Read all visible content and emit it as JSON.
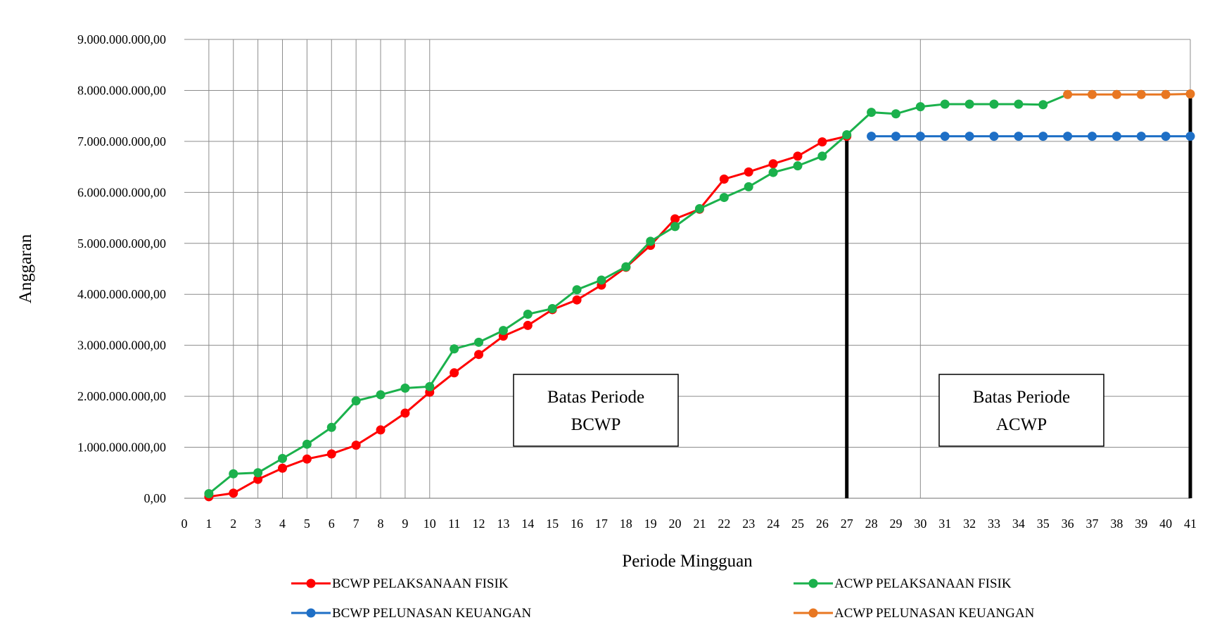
{
  "chart_data": {
    "type": "line",
    "ylabel": "Anggaran",
    "xlabel": "Periode Mingguan",
    "y_ticks": [
      "0,00",
      "1.000.000.000,00",
      "2.000.000.000,00",
      "3.000.000.000,00",
      "4.000.000.000,00",
      "5.000.000.000,00",
      "6.000.000.000,00",
      "7.000.000.000,00",
      "8.000.000.000,00",
      "9.000.000.000,00"
    ],
    "ylim": [
      0,
      9000000000
    ],
    "xlim": [
      0,
      41
    ],
    "x_ticks": [
      "0",
      "1",
      "2",
      "3",
      "4",
      "5",
      "6",
      "7",
      "8",
      "9",
      "10",
      "11",
      "12",
      "13",
      "14",
      "15",
      "16",
      "17",
      "18",
      "19",
      "20",
      "21",
      "22",
      "23",
      "24",
      "25",
      "26",
      "27",
      "28",
      "29",
      "30",
      "31",
      "32",
      "33",
      "34",
      "35",
      "36",
      "37",
      "38",
      "39",
      "40",
      "41"
    ],
    "vertical_gridlines_at": [
      1,
      2,
      3,
      4,
      5,
      6,
      7,
      8,
      9,
      10,
      30,
      41
    ],
    "series": [
      {
        "name": "BCWP PELAKSANAAN FISIK",
        "color": "#ff0000",
        "x": [
          1,
          2,
          3,
          4,
          5,
          6,
          7,
          8,
          9,
          10,
          11,
          12,
          13,
          14,
          15,
          16,
          17,
          18,
          19,
          20,
          21,
          22,
          23,
          24,
          25,
          26,
          27
        ],
        "values": [
          30000000,
          100000000,
          370000000,
          590000000,
          770000000,
          870000000,
          1040000000,
          1340000000,
          1670000000,
          2080000000,
          2460000000,
          2820000000,
          3180000000,
          3390000000,
          3700000000,
          3890000000,
          4180000000,
          4530000000,
          4960000000,
          5480000000,
          5670000000,
          6260000000,
          6400000000,
          6560000000,
          6710000000,
          6990000000,
          7100000000
        ]
      },
      {
        "name": "ACWP PELAKSANAAN FISIK",
        "color": "#1bb14c",
        "x": [
          1,
          2,
          3,
          4,
          5,
          6,
          7,
          8,
          9,
          10,
          11,
          12,
          13,
          14,
          15,
          16,
          17,
          18,
          19,
          20,
          21,
          22,
          23,
          24,
          25,
          26,
          27,
          28,
          29,
          30,
          31,
          32,
          33,
          34,
          35
        ],
        "values": [
          90000000,
          480000000,
          500000000,
          780000000,
          1060000000,
          1390000000,
          1910000000,
          2030000000,
          2160000000,
          2190000000,
          2930000000,
          3060000000,
          3290000000,
          3610000000,
          3720000000,
          4090000000,
          4280000000,
          4540000000,
          5040000000,
          5330000000,
          5680000000,
          5900000000,
          6110000000,
          6390000000,
          6520000000,
          6710000000,
          7130000000,
          7570000000,
          7540000000,
          7680000000,
          7730000000,
          7730000000,
          7730000000,
          7730000000,
          7720000000
        ]
      },
      {
        "name": "BCWP PELUNASAN KEUANGAN",
        "color": "#1e6fc6",
        "x": [
          28,
          29,
          30,
          31,
          32,
          33,
          34,
          35,
          36,
          37,
          38,
          39,
          40,
          41
        ],
        "values": [
          7100000000,
          7100000000,
          7100000000,
          7100000000,
          7100000000,
          7100000000,
          7100000000,
          7100000000,
          7100000000,
          7100000000,
          7100000000,
          7100000000,
          7100000000,
          7100000000
        ]
      },
      {
        "name": "ACWP PELUNASAN KEUANGAN",
        "color": "#e87722",
        "x": [
          36,
          37,
          38,
          39,
          40,
          41
        ],
        "values": [
          7920000000,
          7920000000,
          7920000000,
          7920000000,
          7920000000,
          7930000000
        ]
      }
    ],
    "connector": {
      "color": "#1bb14c",
      "x": [
        35,
        36
      ],
      "values": [
        7720000000,
        7920000000
      ]
    },
    "annotations": [
      {
        "lines": [
          "Batas Periode",
          "BCWP"
        ],
        "marker_x": 27
      },
      {
        "lines": [
          "Batas Periode",
          "ACWP"
        ],
        "marker_x": 41
      }
    ],
    "legend_position": "bottom"
  }
}
